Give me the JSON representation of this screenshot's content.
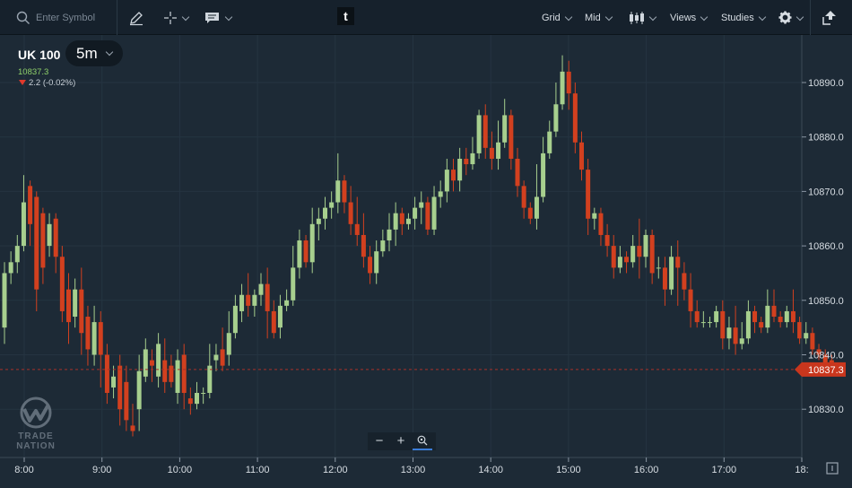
{
  "toolbar": {
    "search_placeholder": "Enter Symbol",
    "tools": [
      "pencil-icon",
      "crosshair-icon",
      "comment-icon"
    ],
    "logo_letter": "t",
    "menus": [
      "Grid",
      "Mid",
      "Views",
      "Studies"
    ],
    "chart_type_icon": "candlestick-icon",
    "settings_icon": "gear-icon",
    "popout_icon": "popout-icon"
  },
  "instrument": {
    "symbol": "UK 100",
    "timeframe": "5m",
    "last_price": "10837.3",
    "change": "2.2 (-0.02%)"
  },
  "zoom": {
    "minus": "−",
    "plus": "+",
    "reset_icon": "zoom-reset-icon"
  },
  "brand": {
    "line1": "TRADE",
    "line2": "NATION"
  },
  "colors": {
    "background": "#1d2a36",
    "toolbar": "#16212c",
    "up": "#a7cf8e",
    "down": "#d2401f",
    "price_tag": "#c9361d",
    "grid": "#253441",
    "last_line": "#a8302a"
  },
  "chart_data": {
    "type": "candlestick",
    "title": "",
    "xlabel": "",
    "ylabel": "",
    "last_price": 10837.3,
    "y_ticks": [
      10890.0,
      10880.0,
      10870.0,
      10860.0,
      10850.0,
      10840.0,
      10830.0
    ],
    "x_ticks": [
      "8:00",
      "9:00",
      "10:00",
      "11:00",
      "12:00",
      "13:00",
      "14:00",
      "15:00",
      "16:00",
      "17:00",
      "18:"
    ],
    "grid": true,
    "candles": [
      [
        10845,
        10855,
        10842,
        10857
      ],
      [
        10855,
        10857,
        10853,
        10859
      ],
      [
        10857,
        10860,
        10855,
        10862
      ],
      [
        10860,
        10868,
        10859,
        10873
      ],
      [
        10871,
        10864,
        10860,
        10872
      ],
      [
        10869,
        10852,
        10848,
        10870
      ],
      [
        10866,
        10856,
        10853,
        10867
      ],
      [
        10860,
        10864,
        10858,
        10866
      ],
      [
        10865,
        10858,
        10855,
        10866
      ],
      [
        10858,
        10848,
        10846,
        10860
      ],
      [
        10852,
        10846,
        10842,
        10855
      ],
      [
        10847,
        10852,
        10845,
        10854
      ],
      [
        10852,
        10844,
        10840,
        10856
      ],
      [
        10847,
        10841,
        10838,
        10849
      ],
      [
        10840,
        10846,
        10838,
        10849
      ],
      [
        10846,
        10840,
        10834,
        10848
      ],
      [
        10840,
        10833,
        10831,
        10842
      ],
      [
        10834,
        10836,
        10832,
        10838
      ],
      [
        10838,
        10830,
        10827,
        10840
      ],
      [
        10835,
        10828,
        10826,
        10838
      ],
      [
        10827,
        10826,
        10825,
        10831
      ],
      [
        10830,
        10837,
        10826,
        10840
      ],
      [
        10836,
        10841,
        10835,
        10843
      ],
      [
        10839,
        10838,
        10835,
        10841
      ],
      [
        10836,
        10842,
        10834,
        10844
      ],
      [
        10839,
        10835,
        10833,
        10843
      ],
      [
        10838,
        10835,
        10834,
        10840
      ],
      [
        10833,
        10839,
        10831,
        10841
      ],
      [
        10840,
        10833,
        10830,
        10842
      ],
      [
        10832,
        10831,
        10829,
        10834
      ],
      [
        10831,
        10833,
        10830,
        10835
      ],
      [
        10833,
        10833,
        10831,
        10834
      ],
      [
        10833,
        10838,
        10832,
        10842
      ],
      [
        10839,
        10840,
        10837,
        10842
      ],
      [
        10841,
        10838,
        10837,
        10845
      ],
      [
        10840,
        10844,
        10838,
        10848
      ],
      [
        10844,
        10849,
        10843,
        10851
      ],
      [
        10848,
        10851,
        10846,
        10853
      ],
      [
        10851,
        10849,
        10847,
        10855
      ],
      [
        10849,
        10851,
        10847,
        10852
      ],
      [
        10851,
        10853,
        10849,
        10855
      ],
      [
        10853,
        10848,
        10843,
        10856
      ],
      [
        10848,
        10844,
        10843,
        10850
      ],
      [
        10845,
        10849,
        10843,
        10851
      ],
      [
        10849,
        10850,
        10848,
        10852
      ],
      [
        10850,
        10856,
        10849,
        10860
      ],
      [
        10856,
        10861,
        10854,
        10863
      ],
      [
        10861,
        10857,
        10856,
        10862
      ],
      [
        10857,
        10864,
        10855,
        10867
      ],
      [
        10864,
        10865,
        10861,
        10867
      ],
      [
        10865,
        10867,
        10863,
        10869
      ],
      [
        10867,
        10868,
        10865,
        10870
      ],
      [
        10868,
        10872,
        10866,
        10877
      ],
      [
        10872,
        10868,
        10866,
        10873
      ],
      [
        10868,
        10864,
        10862,
        10871
      ],
      [
        10864,
        10862,
        10860,
        10869
      ],
      [
        10862,
        10858,
        10856,
        10866
      ],
      [
        10858,
        10855,
        10853,
        10860
      ],
      [
        10855,
        10859,
        10853,
        10861
      ],
      [
        10859,
        10861,
        10858,
        10863
      ],
      [
        10861,
        10863,
        10859,
        10866
      ],
      [
        10863,
        10866,
        10860,
        10868
      ],
      [
        10866,
        10864,
        10862,
        10867
      ],
      [
        10864,
        10865,
        10863,
        10866
      ],
      [
        10865,
        10867,
        10863,
        10869
      ],
      [
        10867,
        10868,
        10864,
        10870
      ],
      [
        10868,
        10863,
        10862,
        10869
      ],
      [
        10863,
        10869,
        10862,
        10871
      ],
      [
        10869,
        10870,
        10867,
        10872
      ],
      [
        10870,
        10874,
        10868,
        10876
      ],
      [
        10874,
        10872,
        10870,
        10876
      ],
      [
        10872,
        10876,
        10870,
        10878
      ],
      [
        10876,
        10875,
        10873,
        10878
      ],
      [
        10875,
        10877,
        10874,
        10880
      ],
      [
        10877,
        10884,
        10876,
        10885
      ],
      [
        10884,
        10878,
        10876,
        10886
      ],
      [
        10878,
        10876,
        10874,
        10881
      ],
      [
        10876,
        10879,
        10874,
        10883
      ],
      [
        10879,
        10884,
        10878,
        10887
      ],
      [
        10884,
        10876,
        10874,
        10885
      ],
      [
        10876,
        10871,
        10869,
        10878
      ],
      [
        10871,
        10867,
        10865,
        10872
      ],
      [
        10867,
        10865,
        10864,
        10868
      ],
      [
        10865,
        10869,
        10863,
        10875
      ],
      [
        10869,
        10877,
        10868,
        10880
      ],
      [
        10877,
        10881,
        10876,
        10883
      ],
      [
        10881,
        10886,
        10880,
        10890
      ],
      [
        10886,
        10892,
        10885,
        10895
      ],
      [
        10892,
        10888,
        10885,
        10894
      ],
      [
        10888,
        10879,
        10877,
        10890
      ],
      [
        10879,
        10874,
        10872,
        10881
      ],
      [
        10874,
        10865,
        10862,
        10876
      ],
      [
        10865,
        10866,
        10863,
        10867
      ],
      [
        10866,
        10862,
        10860,
        10867
      ],
      [
        10862,
        10860,
        10858,
        10864
      ],
      [
        10860,
        10856,
        10854,
        10862
      ],
      [
        10856,
        10858,
        10855,
        10860
      ],
      [
        10858,
        10857,
        10855,
        10859
      ],
      [
        10857,
        10860,
        10856,
        10862
      ],
      [
        10860,
        10858,
        10854,
        10865
      ],
      [
        10858,
        10862,
        10856,
        10863
      ],
      [
        10862,
        10855,
        10853,
        10863
      ],
      [
        10856,
        10856,
        10854,
        10858
      ],
      [
        10856,
        10852,
        10849,
        10858
      ],
      [
        10852,
        10858,
        10851,
        10860
      ],
      [
        10858,
        10856,
        10849,
        10861
      ],
      [
        10855,
        10852,
        10850,
        10857
      ],
      [
        10852,
        10848,
        10845,
        10855
      ],
      [
        10848,
        10846,
        10845,
        10850
      ],
      [
        10846,
        10846,
        10845,
        10848
      ],
      [
        10846,
        10846,
        10845,
        10847
      ],
      [
        10846,
        10848,
        10845,
        10849
      ],
      [
        10848,
        10843,
        10841,
        10850
      ],
      [
        10843,
        10845,
        10841,
        10847
      ],
      [
        10845,
        10842,
        10840,
        10849
      ],
      [
        10842,
        10843,
        10841,
        10846
      ],
      [
        10843,
        10848,
        10842,
        10850
      ],
      [
        10848,
        10846,
        10844,
        10849
      ],
      [
        10846,
        10845,
        10844,
        10847
      ],
      [
        10845,
        10849,
        10844,
        10852
      ],
      [
        10849,
        10847,
        10846,
        10852
      ],
      [
        10847,
        10846,
        10845,
        10848
      ],
      [
        10846,
        10848,
        10845,
        10849
      ],
      [
        10848,
        10846,
        10844,
        10852
      ],
      [
        10846,
        10843,
        10842,
        10847
      ],
      [
        10843,
        10844,
        10842,
        10846
      ],
      [
        10844,
        10841,
        10840,
        10845
      ],
      [
        10841,
        10840,
        10839,
        10842
      ],
      [
        10840,
        10838,
        10837,
        10841
      ],
      [
        10839,
        10837.3,
        10836.5,
        10840
      ]
    ]
  }
}
